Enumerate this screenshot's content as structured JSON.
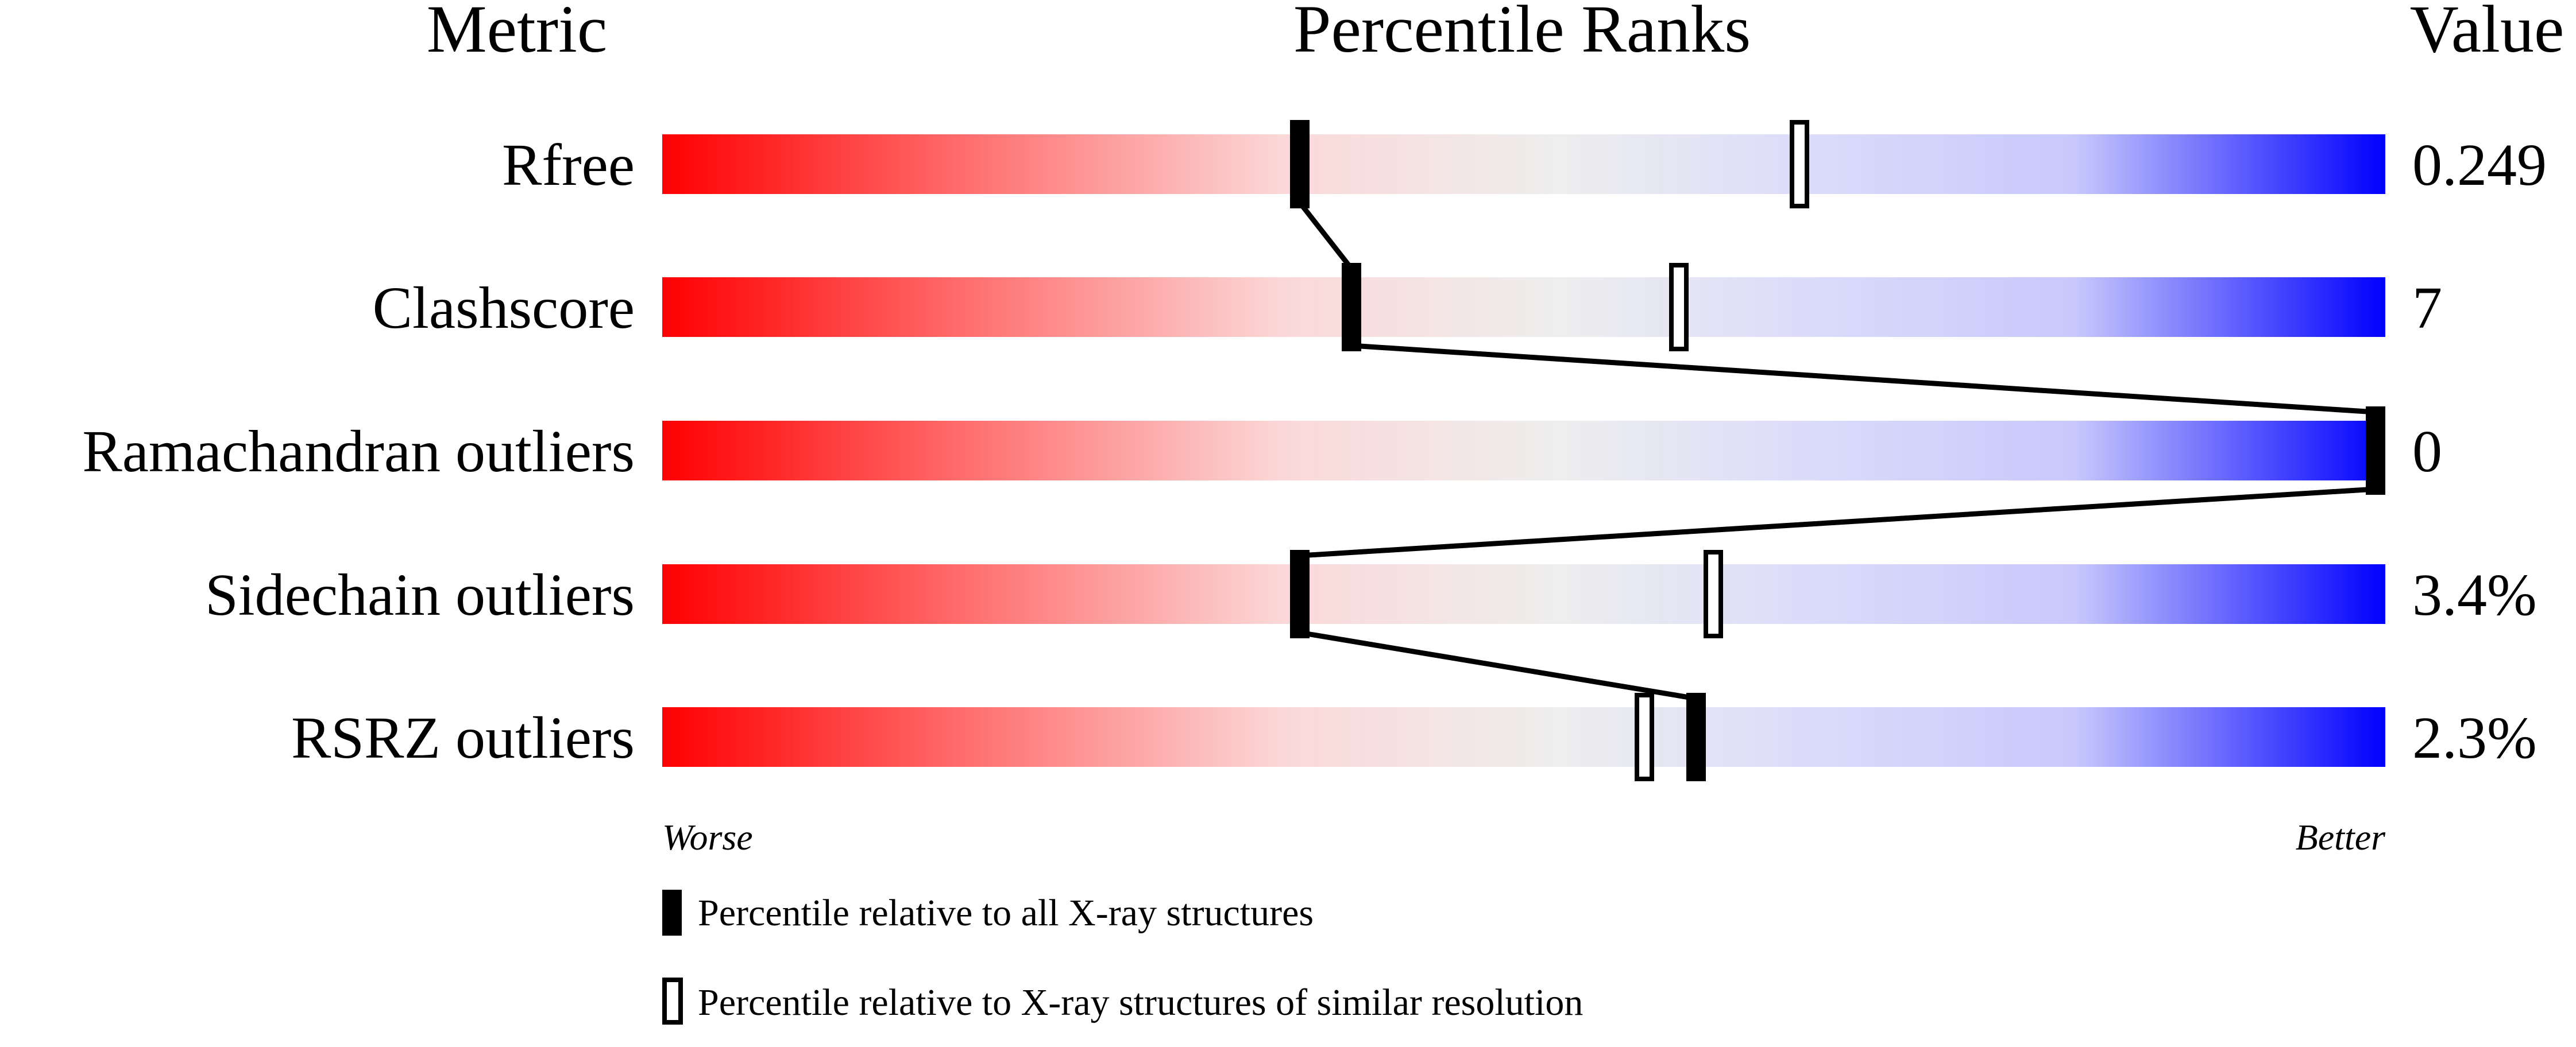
{
  "chart_data": {
    "type": "percentile-bar",
    "headers": {
      "metric": "Metric",
      "ranks": "Percentile Ranks",
      "value": "Value"
    },
    "xlim": [
      0,
      100
    ],
    "axis_labels": {
      "left": "Worse",
      "right": "Better"
    },
    "colors": {
      "worse": "#ff0000",
      "middle": "#eeeeee",
      "better": "#0000ff"
    },
    "metrics": [
      {
        "name": "Rfree",
        "value": "0.249",
        "percentile_all": 37,
        "percentile_similar": 66
      },
      {
        "name": "Clashscore",
        "value": "7",
        "percentile_all": 40,
        "percentile_similar": 59
      },
      {
        "name": "Ramachandran outliers",
        "value": "0",
        "percentile_all": 100,
        "percentile_similar": 100
      },
      {
        "name": "Sidechain outliers",
        "value": "3.4%",
        "percentile_all": 37,
        "percentile_similar": 61
      },
      {
        "name": "RSRZ outliers",
        "value": "2.3%",
        "percentile_all": 60,
        "percentile_similar": 57
      }
    ],
    "legend": {
      "all": "Percentile relative to all X-ray structures",
      "similar": "Percentile relative to X-ray structures of similar resolution"
    }
  }
}
